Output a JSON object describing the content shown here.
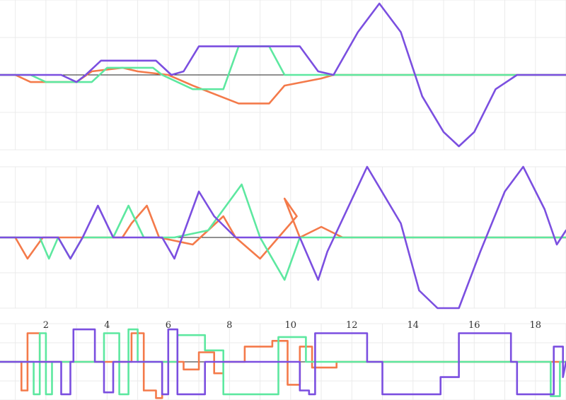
{
  "palette": {
    "series_colors": [
      "#7b4fe0",
      "#5de8a0",
      "#f47a4a"
    ]
  },
  "chart_data": [
    {
      "type": "line",
      "panel": "top",
      "x_range": [
        0.5,
        19
      ],
      "y_range": [
        -1.05,
        1.05
      ],
      "grid": true,
      "series": [
        {
          "points": [
            [
              0.5,
              0
            ],
            [
              2.5,
              0
            ],
            [
              3.0,
              -0.1
            ],
            [
              3.3,
              0
            ],
            [
              3.8,
              0.2
            ],
            [
              5.6,
              0.2
            ],
            [
              6.1,
              0
            ],
            [
              6.5,
              0.05
            ],
            [
              7.0,
              0.4
            ],
            [
              10.3,
              0.4
            ],
            [
              10.9,
              0.05
            ],
            [
              11.4,
              0
            ],
            [
              12.2,
              0.6
            ],
            [
              12.9,
              1.0
            ],
            [
              13.6,
              0.6
            ],
            [
              14.3,
              -0.3
            ],
            [
              15.0,
              -0.8
            ],
            [
              15.5,
              -1.0
            ],
            [
              16.0,
              -0.8
            ],
            [
              16.7,
              -0.2
            ],
            [
              17.4,
              0
            ],
            [
              18.6,
              0
            ],
            [
              19.0,
              0
            ]
          ]
        },
        {
          "points": [
            [
              0.5,
              0
            ],
            [
              1.5,
              0
            ],
            [
              2.0,
              -0.1
            ],
            [
              3.5,
              -0.1
            ],
            [
              4.0,
              0.1
            ],
            [
              5.5,
              0.1
            ],
            [
              5.8,
              0
            ],
            [
              6.8,
              -0.2
            ],
            [
              7.8,
              -0.2
            ],
            [
              8.3,
              0.4
            ],
            [
              9.3,
              0.4
            ],
            [
              9.8,
              0
            ],
            [
              19.0,
              0
            ]
          ]
        },
        {
          "points": [
            [
              0.5,
              0
            ],
            [
              1.0,
              0
            ],
            [
              1.5,
              -0.1
            ],
            [
              3.0,
              -0.1
            ],
            [
              3.5,
              0.05
            ],
            [
              4.5,
              0.1
            ],
            [
              5.0,
              0.05
            ],
            [
              6.0,
              0
            ],
            [
              6.8,
              -0.15
            ],
            [
              8.3,
              -0.4
            ],
            [
              9.3,
              -0.4
            ],
            [
              9.8,
              -0.15
            ],
            [
              11.0,
              -0.05
            ],
            [
              11.4,
              0
            ],
            [
              19.0,
              0
            ]
          ]
        }
      ]
    },
    {
      "type": "line",
      "panel": "middle",
      "x_range": [
        0.5,
        19
      ],
      "y_range": [
        -1.0,
        1.0
      ],
      "grid": true,
      "series": [
        {
          "points": [
            [
              0.5,
              0
            ],
            [
              2.4,
              0
            ],
            [
              2.8,
              -0.3
            ],
            [
              3.2,
              0
            ],
            [
              3.7,
              0.45
            ],
            [
              4.2,
              0
            ],
            [
              5.8,
              0
            ],
            [
              6.2,
              -0.3
            ],
            [
              7.0,
              0.65
            ],
            [
              7.5,
              0.3
            ],
            [
              8.2,
              0
            ],
            [
              10.3,
              0
            ],
            [
              10.9,
              -0.6
            ],
            [
              11.2,
              -0.2
            ],
            [
              12.5,
              1.0
            ],
            [
              13.6,
              0.2
            ],
            [
              14.2,
              -0.75
            ],
            [
              14.8,
              -1.0
            ],
            [
              15.5,
              -1.0
            ],
            [
              16.2,
              -0.2
            ],
            [
              17.0,
              0.65
            ],
            [
              17.6,
              1.0
            ],
            [
              18.3,
              0.4
            ],
            [
              18.7,
              -0.1
            ],
            [
              19.0,
              0.1
            ]
          ]
        },
        {
          "points": [
            [
              0.5,
              0
            ],
            [
              1.8,
              0
            ],
            [
              2.1,
              -0.3
            ],
            [
              2.4,
              0
            ],
            [
              2.8,
              -0.3
            ],
            [
              3.2,
              0
            ],
            [
              3.8,
              0
            ],
            [
              4.2,
              0
            ],
            [
              4.7,
              0.45
            ],
            [
              5.2,
              0
            ],
            [
              6.2,
              0
            ],
            [
              7.3,
              0.1
            ],
            [
              8.4,
              0.75
            ],
            [
              9.0,
              0
            ],
            [
              9.8,
              -0.6
            ],
            [
              10.3,
              0
            ],
            [
              19.0,
              0
            ]
          ]
        },
        {
          "points": [
            [
              0.5,
              0
            ],
            [
              1.0,
              0
            ],
            [
              1.4,
              -0.3
            ],
            [
              1.9,
              0
            ],
            [
              4.5,
              0
            ],
            [
              4.8,
              0.2
            ],
            [
              5.3,
              0.45
            ],
            [
              5.7,
              0
            ],
            [
              6.8,
              -0.1
            ],
            [
              7.8,
              0.3
            ],
            [
              8.2,
              0
            ],
            [
              9.0,
              -0.3
            ],
            [
              10.2,
              0.3
            ],
            [
              9.8,
              0.55
            ],
            [
              10.3,
              0
            ],
            [
              11.0,
              0.15
            ],
            [
              11.7,
              0
            ],
            [
              19.0,
              0
            ]
          ]
        }
      ]
    },
    {
      "type": "line",
      "panel": "bottom",
      "x_range": [
        0.5,
        19
      ],
      "y_range": [
        -1.0,
        1.0
      ],
      "grid": true,
      "x_ticks": [
        "2",
        "4",
        "6",
        "8",
        "10",
        "12",
        "14",
        "16",
        "18"
      ],
      "series": [
        {
          "points": [
            [
              0.5,
              0
            ],
            [
              2.5,
              0
            ],
            [
              2.5,
              -0.85
            ],
            [
              2.8,
              -0.85
            ],
            [
              2.8,
              0
            ],
            [
              2.9,
              0
            ],
            [
              2.9,
              0.85
            ],
            [
              3.6,
              0.85
            ],
            [
              3.6,
              0
            ],
            [
              3.9,
              0
            ],
            [
              3.9,
              -0.8
            ],
            [
              4.2,
              -0.8
            ],
            [
              4.2,
              0
            ],
            [
              5.8,
              0
            ],
            [
              5.8,
              -0.85
            ],
            [
              6.0,
              -0.85
            ],
            [
              6.0,
              0.85
            ],
            [
              6.3,
              0.85
            ],
            [
              6.3,
              -0.85
            ],
            [
              7.2,
              -0.85
            ],
            [
              7.2,
              0
            ],
            [
              10.3,
              0
            ],
            [
              10.3,
              -0.75
            ],
            [
              10.6,
              -0.75
            ],
            [
              10.6,
              -0.85
            ],
            [
              10.8,
              -0.85
            ],
            [
              10.8,
              0.75
            ],
            [
              12.5,
              0.75
            ],
            [
              12.5,
              0
            ],
            [
              13.0,
              0
            ],
            [
              13.0,
              -0.85
            ],
            [
              14.9,
              -0.85
            ],
            [
              14.9,
              -0.4
            ],
            [
              15.5,
              -0.4
            ],
            [
              15.5,
              0.75
            ],
            [
              17.2,
              0.75
            ],
            [
              17.2,
              0
            ],
            [
              17.4,
              0
            ],
            [
              17.4,
              -0.85
            ],
            [
              18.6,
              -0.85
            ],
            [
              18.6,
              0.4
            ],
            [
              18.9,
              0.4
            ],
            [
              18.9,
              -0.4
            ],
            [
              19.0,
              0
            ]
          ]
        },
        {
          "points": [
            [
              0.5,
              0
            ],
            [
              1.6,
              0
            ],
            [
              1.6,
              -0.85
            ],
            [
              1.8,
              -0.85
            ],
            [
              1.8,
              0.75
            ],
            [
              2.0,
              0.75
            ],
            [
              2.0,
              -0.85
            ],
            [
              2.2,
              -0.85
            ],
            [
              2.2,
              0
            ],
            [
              3.9,
              0
            ],
            [
              3.9,
              0.75
            ],
            [
              4.4,
              0.75
            ],
            [
              4.4,
              -0.85
            ],
            [
              4.7,
              -0.85
            ],
            [
              4.7,
              0.85
            ],
            [
              5.0,
              0.85
            ],
            [
              5.0,
              0
            ],
            [
              6.3,
              0
            ],
            [
              6.3,
              0.7
            ],
            [
              7.2,
              0.7
            ],
            [
              7.2,
              0.3
            ],
            [
              7.8,
              0.3
            ],
            [
              7.8,
              -0.85
            ],
            [
              9.6,
              -0.85
            ],
            [
              9.6,
              0.65
            ],
            [
              10.5,
              0.65
            ],
            [
              10.5,
              0
            ],
            [
              18.5,
              0
            ],
            [
              18.5,
              -0.9
            ],
            [
              18.8,
              -0.9
            ],
            [
              18.8,
              0
            ],
            [
              19.0,
              0
            ]
          ]
        },
        {
          "points": [
            [
              0.5,
              0
            ],
            [
              1.2,
              0
            ],
            [
              1.2,
              -0.75
            ],
            [
              1.4,
              -0.75
            ],
            [
              1.4,
              0.75
            ],
            [
              1.8,
              0.75
            ],
            [
              1.8,
              0
            ],
            [
              4.8,
              0
            ],
            [
              4.8,
              0.75
            ],
            [
              5.2,
              0.75
            ],
            [
              5.2,
              -0.75
            ],
            [
              5.6,
              -0.75
            ],
            [
              5.6,
              -0.95
            ],
            [
              5.8,
              -0.95
            ],
            [
              5.8,
              0
            ],
            [
              6.5,
              0
            ],
            [
              6.5,
              -0.2
            ],
            [
              7.0,
              -0.2
            ],
            [
              7.0,
              0.25
            ],
            [
              7.5,
              0.25
            ],
            [
              7.5,
              -0.3
            ],
            [
              7.8,
              -0.3
            ],
            [
              7.8,
              0
            ],
            [
              8.5,
              0
            ],
            [
              8.5,
              0.4
            ],
            [
              9.4,
              0.4
            ],
            [
              9.4,
              0.55
            ],
            [
              9.9,
              0.55
            ],
            [
              9.9,
              -0.6
            ],
            [
              10.3,
              -0.6
            ],
            [
              10.3,
              0.4
            ],
            [
              10.7,
              0.4
            ],
            [
              10.7,
              -0.15
            ],
            [
              11.5,
              -0.15
            ],
            [
              11.5,
              0
            ],
            [
              19.0,
              0
            ]
          ]
        }
      ]
    }
  ]
}
